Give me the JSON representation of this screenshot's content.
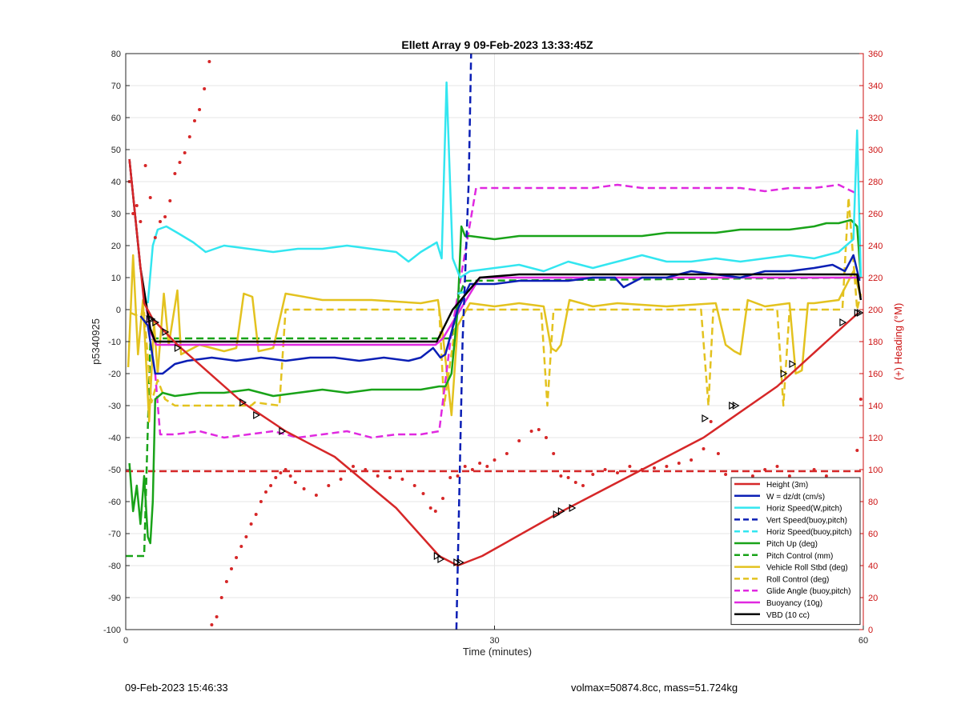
{
  "footer": {
    "date": "09-Feb-2023 15:46:33",
    "vol_mass": "volmax=50874.8cc, mass=51.724kg"
  },
  "chart_data": {
    "type": "line",
    "title": "Ellett Array 9 09-Feb-2023 13:33:45Z",
    "xlabel": "Time (minutes)",
    "ylabel": "p5340925",
    "y2label": "(+) Heading (°M)",
    "xlim": [
      0,
      60
    ],
    "ylim": [
      -100,
      80
    ],
    "y2lim": [
      0,
      360
    ],
    "xticks": [
      0,
      30,
      60
    ],
    "yticks": [
      -100,
      -90,
      -80,
      -70,
      -60,
      -50,
      -40,
      -30,
      -20,
      -10,
      0,
      10,
      20,
      30,
      40,
      50,
      60,
      70,
      80
    ],
    "y2ticks": [
      0,
      20,
      40,
      60,
      80,
      100,
      120,
      140,
      160,
      180,
      200,
      220,
      240,
      260,
      280,
      300,
      320,
      340,
      360
    ],
    "grid": true,
    "legend_position": "bottom-right",
    "colors": {
      "height": "#d62728",
      "w": "#0b1fb5",
      "cyan": "#33e6f0",
      "green": "#19a319",
      "yellow": "#e3c21f",
      "magenta": "#e029e0",
      "black": "#000000",
      "heading": "#d62728",
      "right_axis": "#cc1111"
    },
    "series": [
      {
        "name": "Height (3m)",
        "style": "solid",
        "color": "#d62728",
        "x": [
          0.3,
          1.5,
          2.2,
          4.2,
          9.5,
          13,
          17,
          22,
          25.5,
          27,
          29,
          35,
          41,
          47,
          53,
          57,
          59.6
        ],
        "y": [
          47,
          2,
          -3,
          -11,
          -29,
          -38,
          -46,
          -62,
          -77,
          -80,
          -77,
          -64,
          -52,
          -40,
          -24,
          -10,
          -1
        ]
      },
      {
        "name": "W = dz/dt (cm/s)",
        "style": "solid",
        "color": "#0b1fb5",
        "x": [
          1.2,
          1.8,
          2.4,
          3,
          4,
          5,
          7,
          9,
          11,
          13,
          15,
          17,
          19,
          21,
          23,
          24,
          25,
          25.6,
          26,
          27,
          28,
          30,
          32,
          34,
          36,
          38,
          39.8,
          40.5,
          42,
          44,
          46,
          48,
          50,
          52,
          54,
          56,
          57.5,
          58.5,
          59.2,
          59.7
        ],
        "y": [
          -2,
          -5,
          -20,
          -20,
          -17,
          -16,
          -15,
          -16,
          -15,
          -16,
          -15,
          -15,
          -16,
          -15,
          -16,
          -15,
          -12,
          -15,
          -14,
          0,
          8,
          8,
          9,
          9,
          9,
          10,
          10,
          7,
          10,
          10,
          12,
          11,
          10,
          12,
          12,
          13,
          14,
          12,
          17,
          9
        ]
      },
      {
        "name": "Horiz Speed(W,pitch)",
        "style": "solid",
        "color": "#33e6f0",
        "x": [
          1.8,
          2.2,
          2.6,
          3.3,
          4.2,
          5.5,
          6.5,
          8,
          10,
          12,
          14,
          16,
          18,
          20,
          22,
          23,
          24,
          25.3,
          25.7,
          26.1,
          26.6,
          27.2,
          28,
          30,
          32,
          34,
          36,
          38,
          40,
          42,
          44,
          46,
          48,
          50,
          52,
          54,
          56,
          58,
          59.2,
          59.5,
          59.8
        ],
        "y": [
          2,
          20,
          25,
          26,
          24,
          21,
          18,
          20,
          19,
          18,
          19,
          19,
          20,
          19,
          18,
          15,
          18,
          21,
          16,
          71,
          16,
          10,
          12,
          13,
          14,
          12,
          15,
          13,
          15,
          17,
          15,
          15,
          16,
          15,
          16,
          17,
          16,
          18,
          22,
          56,
          10
        ]
      },
      {
        "name": "Vert Speed(buoy,pitch)",
        "style": "dash",
        "color": "#0b1fb5",
        "x": [
          26.9,
          27.4,
          27.9,
          28.1
        ],
        "y": [
          -100,
          -10,
          40,
          80
        ]
      },
      {
        "name": "Horiz Speed(buoy,pitch)",
        "style": "dash",
        "color": "#33e6f0",
        "x": [
          27,
          28
        ],
        "y": [
          5,
          6
        ]
      },
      {
        "name": "Pitch Up (deg)",
        "style": "solid",
        "color": "#19a319",
        "x": [
          0.3,
          0.6,
          0.9,
          1.2,
          1.5,
          1.8,
          2.0,
          2.2,
          2.4,
          3,
          4,
          6,
          8,
          10,
          12,
          14,
          16,
          18,
          20,
          22,
          24,
          25.5,
          26,
          26.5,
          27,
          27.3,
          27.6,
          28,
          30,
          32,
          34,
          36,
          38,
          40,
          42,
          44,
          46,
          48,
          50,
          52,
          54,
          56,
          57,
          58,
          59,
          59.5,
          59.8
        ],
        "y": [
          -48,
          -63,
          -55,
          -67,
          -52,
          -71,
          -73,
          -60,
          -28,
          -26,
          -27,
          -26,
          -26,
          -25,
          -27,
          -26,
          -25,
          -26,
          -25,
          -25,
          -25,
          -24,
          -24,
          -20,
          0,
          26,
          23,
          23,
          22,
          23,
          23,
          23,
          23,
          23,
          23,
          24,
          24,
          24,
          25,
          25,
          25,
          26,
          27,
          27,
          28,
          26,
          10
        ]
      },
      {
        "name": "Pitch Control (mm)",
        "style": "dash",
        "color": "#19a319",
        "x": [
          0,
          1.5,
          2.0,
          2.3,
          26.5,
          27,
          27.6,
          59.8
        ],
        "y": [
          -77,
          -77,
          -10,
          -9,
          -9,
          3,
          9,
          10
        ]
      },
      {
        "name": "Vehicle Roll Stbd (deg)",
        "style": "solid",
        "color": "#e3c21f",
        "x": [
          0.2,
          0.6,
          1,
          1.4,
          1.9,
          2.3,
          2.6,
          3.1,
          3.5,
          4.2,
          4.5,
          6,
          8,
          9,
          9.6,
          10.3,
          10.8,
          12,
          13,
          16,
          20,
          24,
          25.4,
          25.8,
          26.5,
          27,
          28,
          30,
          32,
          34,
          34.6,
          35,
          35.4,
          36.1,
          38,
          40,
          44,
          48,
          48.8,
          49.5,
          50,
          50.6,
          52,
          54,
          54.5,
          55,
          55.5,
          56,
          58,
          59.2,
          59.8
        ],
        "y": [
          -18,
          17,
          -14,
          3,
          -35,
          -4,
          -20,
          5,
          -11,
          6,
          -14,
          -11,
          -13,
          -12,
          5,
          4,
          -13,
          -12,
          5,
          3,
          3,
          2,
          3,
          -8,
          -33,
          -5,
          2,
          1,
          2,
          1,
          -12,
          -13,
          -11,
          3,
          1,
          2,
          1,
          2,
          -11,
          -13,
          -14,
          3,
          1,
          2,
          -20,
          -19,
          2,
          2,
          3,
          12,
          4
        ]
      },
      {
        "name": "Roll Control (deg)",
        "style": "dash",
        "color": "#e3c21f",
        "x": [
          0.4,
          1.0,
          1.5,
          2.1,
          2.6,
          3.2,
          4.0,
          4.4,
          10.2,
          10.5,
          12.5,
          13,
          25.5,
          25.9,
          27.0,
          33.8,
          34.3,
          34.8,
          46.8,
          47.4,
          47.8,
          53.0,
          53.5,
          54,
          58.3,
          58.8,
          59.5,
          59.8
        ],
        "y": [
          -1,
          -2,
          -1,
          -29,
          -22,
          -28,
          -30,
          -30,
          -30,
          -29,
          -30,
          0,
          0,
          -30,
          0,
          0,
          -30,
          0,
          0,
          -30,
          0,
          0,
          -30,
          0,
          0,
          35,
          0,
          5
        ]
      },
      {
        "name": "Glide Angle (buoy,pitch)",
        "style": "dash",
        "color": "#e029e0",
        "x": [
          2.4,
          2.8,
          4,
          6,
          8,
          10,
          12,
          14,
          16,
          18,
          20,
          22,
          24,
          25.5,
          26.5,
          28.5,
          30,
          32,
          34,
          36,
          38,
          40,
          42,
          44,
          46,
          48,
          50,
          52,
          54,
          56,
          58,
          59.6
        ],
        "y": [
          -20,
          -39,
          -39,
          -38,
          -40,
          -39,
          -38,
          -40,
          -39,
          -38,
          -40,
          -39,
          -39,
          -38,
          -7,
          38,
          38,
          38,
          38,
          38,
          38,
          39,
          38,
          38,
          38,
          38,
          38,
          37,
          38,
          38,
          39,
          36
        ]
      },
      {
        "name": "Buoyancy (10g)",
        "style": "solid",
        "color": "#e029e0",
        "x": [
          0.3,
          1.2,
          2.0,
          2.5,
          25.2,
          25.8,
          28.8,
          59.8
        ],
        "y": [
          47,
          13,
          -7,
          -11,
          -11,
          -9,
          10,
          10
        ]
      },
      {
        "name": "VBD (10 cc)",
        "style": "solid",
        "color": "#000000",
        "x": [
          0.3,
          1.2,
          2.0,
          2.4,
          25.3,
          26.6,
          28.8,
          32,
          59.5,
          59.8
        ],
        "y": [
          47,
          13,
          -6,
          -10,
          -10,
          0,
          10,
          11,
          11,
          3
        ]
      },
      {
        "name": "",
        "style": "dash",
        "color": "#d62728",
        "x": [
          0,
          59.8
        ],
        "y": [
          -50.5,
          -50.5
        ]
      }
    ],
    "heading_points_y2": {
      "color": "#d62728",
      "x": [
        0.3,
        0.6,
        0.9,
        1.2,
        1.6,
        2.0,
        2.4,
        2.8,
        3.2,
        3.6,
        4.0,
        4.4,
        4.8,
        5.2,
        5.6,
        6.0,
        6.4,
        6.8,
        7.0,
        7.4,
        7.8,
        8.2,
        8.6,
        9.0,
        9.4,
        9.8,
        10.2,
        10.6,
        11.0,
        11.4,
        11.8,
        12.2,
        12.6,
        13.0,
        13.4,
        13.8,
        14.5,
        15.5,
        16.5,
        17.5,
        18.5,
        19.5,
        20.5,
        21.5,
        22.5,
        23.5,
        24.2,
        24.8,
        25.2,
        25.8,
        26.4,
        27.0,
        27.6,
        28.2,
        28.8,
        29.4,
        30.0,
        31.0,
        32.0,
        33.0,
        33.6,
        34.2,
        34.8,
        35.4,
        36.0,
        36.6,
        37.2,
        38.0,
        39.0,
        40.0,
        41.0,
        42.0,
        43.0,
        44.0,
        45.0,
        46.0,
        47.0,
        47.6,
        48.2,
        48.8,
        49.4,
        50.0,
        51.0,
        52.0,
        53.0,
        54.0,
        55.0,
        56.0,
        57.0,
        58.0,
        59.0,
        59.5,
        59.8
      ],
      "y": [
        280,
        260,
        265,
        255,
        290,
        270,
        245,
        255,
        258,
        268,
        285,
        292,
        298,
        308,
        318,
        325,
        338,
        355,
        3,
        8,
        20,
        30,
        38,
        45,
        52,
        58,
        66,
        72,
        80,
        86,
        90,
        95,
        98,
        100,
        96,
        92,
        88,
        84,
        90,
        94,
        102,
        100,
        96,
        95,
        94,
        90,
        85,
        76,
        74,
        82,
        95,
        96,
        102,
        100,
        104,
        102,
        106,
        110,
        118,
        124,
        125,
        120,
        110,
        96,
        95,
        92,
        90,
        97,
        100,
        98,
        102,
        100,
        101,
        102,
        104,
        106,
        113,
        130,
        110,
        97,
        92,
        90,
        96,
        100,
        102,
        96,
        94,
        100,
        96,
        90,
        86,
        112,
        144
      ]
    },
    "waypoint_markers": {
      "x": [
        1.9,
        2.1,
        2.4,
        3.2,
        4.2,
        9.5,
        10.6,
        12.7,
        25.3,
        25.6,
        26.9,
        27.2,
        35.0,
        35.4,
        36.3,
        47.1,
        49.3,
        49.6,
        53.5,
        54.2,
        58.3,
        59.5,
        59.7
      ],
      "y": [
        -3,
        -3,
        -4,
        -7,
        -12,
        -29,
        -33,
        -38,
        -77,
        -78,
        -79,
        -79,
        -64,
        -63,
        -62,
        -34,
        -30,
        -30,
        -20,
        -17,
        -4,
        -1,
        -1
      ]
    }
  }
}
